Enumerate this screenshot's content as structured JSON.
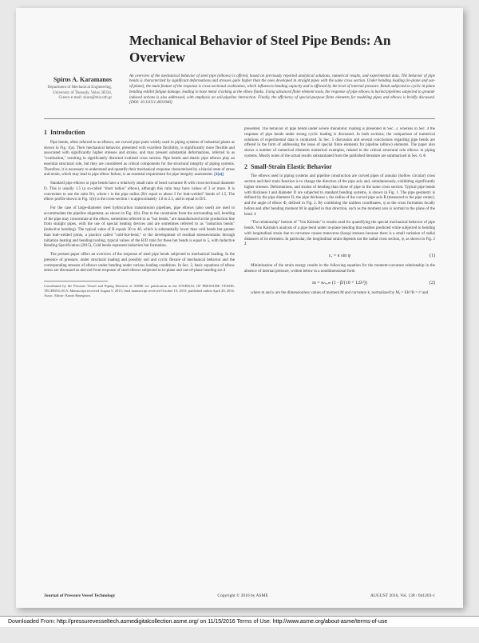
{
  "title": "Mechanical Behavior of Steel Pipe Bends: An Overview",
  "author": {
    "name": "Spiros A. Karamanos",
    "affil": "Department of Mechanical Engineering,\nUniversity of Thessaly,\nVolos 38334, Greece\ne-mail: skara@mie.uth.gr"
  },
  "abstract": "An overview of the mechanical behavior of steel pipe (elbows) is offered, based on previously reported analytical solutions, numerical results, and experimental data. The behavior of pipe bends is characterized by significant deformations and stresses quite higher than the ones developed in straight pipes with the same cross section. Under bending loading (in-plane and out-of-plane), the main feature of the response is cross-sectional ovalization, which influences bending capacity and is affected by the level of internal pressure. Bends subjected to cyclic in-plane bending exhibit fatigue damage, leading to base metal cracking at the elbow flanks. Using advanced finite element tools, the response of pipe elbows in buried pipelines subjected to ground-induced actions is also addressed, with emphasis on soil-pipeline interaction. Finally, the efficiency of special-purpose finite elements for modeling pipes and elbows is briefly discussed. [DOI: 10.1115/1.4031940]",
  "doi": "[DOI: 10.1115/1.4031940]",
  "sections": {
    "s1": {
      "num": "1",
      "title": "Introduction",
      "p1": "Pipe bends, often referred to as elbows, are curved pipe parts widely used in piping systems of industrial plants as shown in Fig. 1(a). Their mechanical behavior, presented with excellent flexibility, is significantly more flexible and associated with significantly higher stresses and strains, and may present substantial deformations, referred to as \"ovalization,\" resulting in significantly distorted ovalized cross section. Pipe bends and elastic pipe elbows play an essential structural role, but they are considered as critical components for the structural integrity of piping systems. Therefore, it is necessary to understand and quantify their mechanical response characterized by a biaxial state of stress and strain, which may lead to pipe elbow failure, is an essential requirement for pipe integrity assessment.",
      "p2": "Standard pipe elbows or pipe bends have a relatively small ratio of bend curvature R with cross-sectional diameter D. This is usually 1.5 (a so-called \"short radius\" elbow), although this ratio may have values of 3 or more. It is convenient to use the ratio R/r, where r is the pipe radius (R/r equal to about 3 for butt-welded\" bends of 1.5, The elbow profile shown in Fig. 1(b) is the cross-section r is approximately 1.8 to 2.5, and is equal to D/2.",
      "p3": "For the case of large-diameter steel hydrocarbon transmission pipelines, pipe elbows (also used) are used to accommodate the pipeline alignment, as shown in Fig. 1(b). Due to the constraints from the surrounding soil, bending of the pipe may concentrate at the elbow, sometimes referred to as \"hot bends,\" are manufactured at the production line from straight pipes, with the use of special heating devices and are sometimes referred to as \"induction bends\" (inductive bending). The typical value of R equals 30 to 40, which is substantially lower than cold bends but greater than butt-welded joints, a practice called \"cold-but-bend,\" or the development of residual stresses/strains through initiation heating and bending/cooling, typical values of the R/D ratio for these hot bends is equal to 5, with Inductive Bending Specification (2015), Cold bends represent induction hot formation.",
      "p4": "The present paper offers an overview of the response of steel pipe bends subjected to mechanical loading. In the presence of pressure, under structural loading and possibly soil and cyclic flexure of mechanical behavior and the corresponding stresses of elbows under bending under various loading conditions. In Sec. 2, basic equations of elbow stress are discussed as derived from response of steel elbows subjected to in-plane and out-of-plane bending are"
    },
    "s2": {
      "num": "2",
      "title": "Small-Strain Elastic Behavior",
      "p1": "The elbows used in piping systems and pipeline construction are curved pipes of annular (hollow circular) cross section and their main function is to change the direction of the pipe axis and, simultaneously, exhibiting significantly higher stresses. Deformations, and strains of bending than those of pipe in the same cross section. Typical pipe bends with thickness t and diameter D are subjected to standard bending systems, is shown in Fig. 1. The pipe geometry is defined by the pipe diameter D, the pipe thickness t, the radius of the curved pipe axis R (measured to the pipe center), and the angle of elbow Φ, defined in Fig. 2. By combining the unitless coordinates, ψ as the cross formation locally before and after bending moment M in applied in that direction, such as the moment axis is normal to the plane of the bend.",
      "p2": "\"The relationship\" bottom of \"Von Kármán\" is results used for quantifying the special mechanical behavior of pipe bends. Von Kármán's analysis of a pipe bend under in-plane bending that enables predicted while subjected to bending with longitudinal strain due to curvature causes transverse (hoop) stresses because there is a small variation of radial distances of its elements. In particular, the longitudinal strain depends not the radial cross section, ψ, as shown in Fig. 2",
      "eq1_lhs": "εₓ = κ sin φ",
      "eq1_num": "(1)",
      "p3": "Minimization of the strain energy results in the following equation for the moment-curvature relationship in the absence of internal pressure, written below in a nondimensional form",
      "eq2": "m = κₙₒᵣₘ (1 - β/(10 + 12λ²))",
      "eq2_num": "(2)",
      "p4": "where m and κ are the dimensionless values of moment M and curvature k, normalized by Mₑ = EIr²/R = r³ and"
    },
    "right_extra": "presented. The behavior of pipe bends under severe monotonic loading is presented in Sec. 3, whereas in Sec. 4 the response of pipe bends under strong cyclic loading is discussed. In both sections, the comparison of numerical solutions of experimental data is conducted. In Sec. 5 discussion and several conclusions regarding pipe bends are offered in the form of addressing the issue of special finite elements for pipeline (elbow) elements. The paper also shows a number of numerical elements numerical examples, related to the critical structural role elbows in piping systems. Mostly notes of the actual results substantiated from the published literature are summarized in Sec. 6."
  },
  "footnote": "Contributed by the Pressure Vessel and Piping Division of ASME for publication in the JOURNAL OF PRESSURE VESSEL TECHNOLOGY. Manuscript received August 9, 2015; final manuscript received October 19, 2015; published online April 28, 2016. Assoc. Editor: Kunio Hasegawa.",
  "footer": {
    "left": "Journal of Pressure Vessel Technology",
    "center": "Copyright © 2016 by ASME",
    "right": "AUGUST 2016, Vol. 138 / 041203-1"
  },
  "download": {
    "prefix": "Downloaded From: ",
    "url": "http://pressurevesseltech.asmedigitalcollection.asme.org/ on 11/15/2016",
    "terms_label": " Terms of Use: ",
    "terms_url": "http://www.asme.org/about-asme/terms-of-use"
  }
}
